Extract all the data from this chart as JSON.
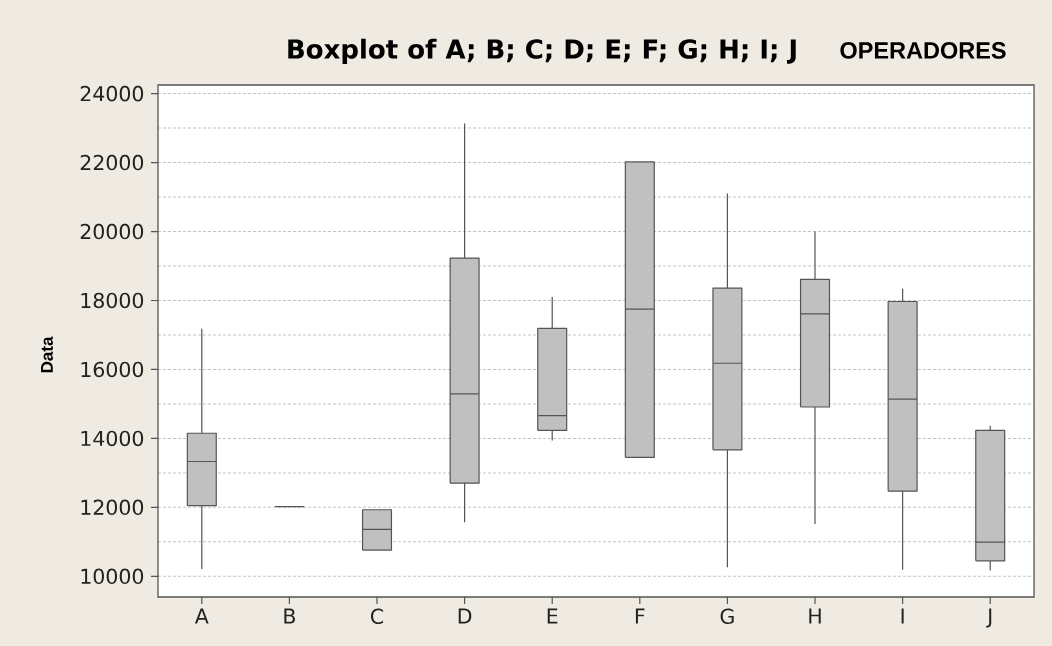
{
  "chart_data": {
    "type": "box",
    "title": "Boxplot of A; B; C; D; E; F; G; H; I; J",
    "ylabel": "Data",
    "annotations": [
      "OPERADORES"
    ],
    "categories": [
      "A",
      "B",
      "C",
      "D",
      "E",
      "F",
      "G",
      "H",
      "I",
      "J"
    ],
    "boxes": [
      {
        "low": 10210,
        "q1": 12050,
        "median": 13330,
        "q3": 14150,
        "high": 17180
      },
      {
        "low": 12020,
        "q1": 12020,
        "median": 12020,
        "q3": 12020,
        "high": 12020
      },
      {
        "low": 10760,
        "q1": 10760,
        "median": 11360,
        "q3": 11930,
        "high": 11930
      },
      {
        "low": 11570,
        "q1": 12700,
        "median": 15290,
        "q3": 19230,
        "high": 23130
      },
      {
        "low": 13940,
        "q1": 14230,
        "median": 14660,
        "q3": 17190,
        "high": 18100
      },
      {
        "low": 13450,
        "q1": 13450,
        "median": 17750,
        "q3": 22020,
        "high": 22020
      },
      {
        "low": 10260,
        "q1": 13670,
        "median": 16180,
        "q3": 18360,
        "high": 21100
      },
      {
        "low": 11520,
        "q1": 14910,
        "median": 17610,
        "q3": 18610,
        "high": 20000
      },
      {
        "low": 10190,
        "q1": 12470,
        "median": 15140,
        "q3": 17970,
        "high": 18340
      },
      {
        "low": 10170,
        "q1": 10450,
        "median": 10990,
        "q3": 14230,
        "high": 14370
      }
    ],
    "colors": [
      "#c0c0c0",
      "#555555",
      "#c0c0c0",
      "#c0c0c0",
      "#c0c0c0",
      "#c0c0c0",
      "#c0c0c0",
      "#c0c0c0",
      "#c0c0c0",
      "#c0c0c0"
    ],
    "ylim": [
      9400,
      24250
    ],
    "yticks": [
      10000,
      {
        "value": 11000,
        "label": null
      },
      12000,
      {
        "value": 13000,
        "label": null
      },
      14000,
      {
        "value": 15000,
        "label": null
      },
      16000,
      {
        "value": 17000,
        "label": null
      },
      18000,
      {
        "value": 19000,
        "label": null
      },
      20000,
      {
        "value": 21000,
        "label": null
      },
      22000,
      {
        "value": 23000,
        "label": null
      },
      24000
    ],
    "grid": "y"
  }
}
